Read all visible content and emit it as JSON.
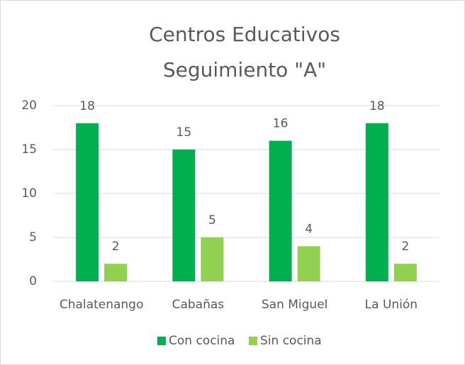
{
  "chart_data": {
    "type": "bar",
    "title": [
      "Centros Educativos",
      "Seguimiento \"A\""
    ],
    "categories": [
      "Chalatenango",
      "Cabañas",
      "San Miguel",
      "La Unión"
    ],
    "series": [
      {
        "name": "Con cocina",
        "color": "#00b050",
        "values": [
          18,
          15,
          16,
          18
        ]
      },
      {
        "name": "Sin cocina",
        "color": "#92d050",
        "values": [
          2,
          5,
          4,
          2
        ]
      }
    ],
    "ylim": [
      0,
      20
    ],
    "yticks": [
      0,
      5,
      10,
      15,
      20
    ],
    "grid": true,
    "legend": "bottom"
  }
}
